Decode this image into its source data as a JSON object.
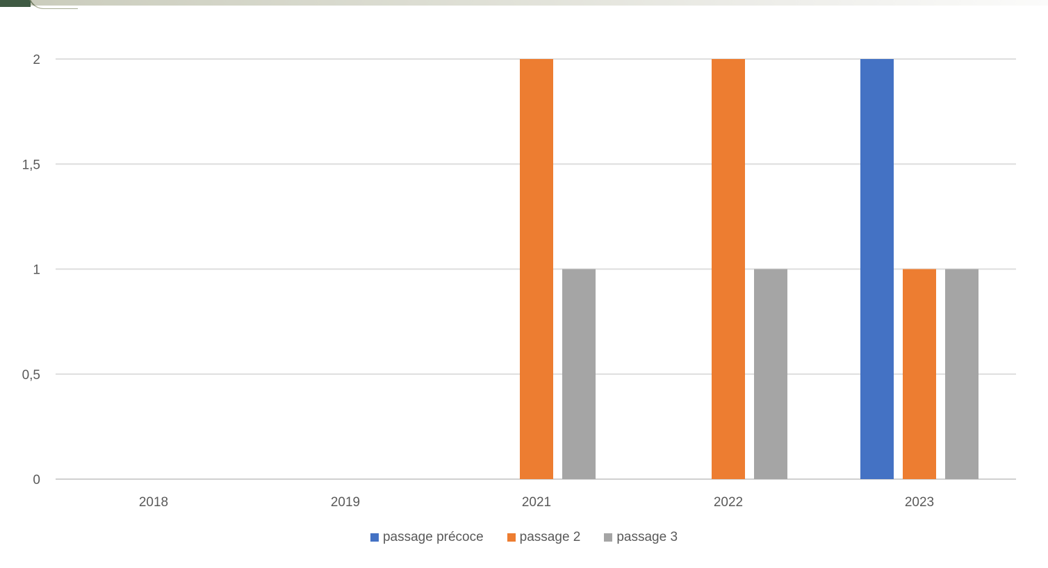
{
  "chart_data": {
    "type": "bar",
    "categories": [
      "2018",
      "2019",
      "2021",
      "2022",
      "2023"
    ],
    "series": [
      {
        "name": "passage précoce",
        "color": "#4472c4",
        "values": [
          0,
          0,
          0,
          0,
          2
        ]
      },
      {
        "name": "passage 2",
        "color": "#ed7d31",
        "values": [
          0,
          0,
          2,
          2,
          1
        ]
      },
      {
        "name": "passage 3",
        "color": "#a5a5a5",
        "values": [
          0,
          0,
          1,
          1,
          1
        ]
      }
    ],
    "yticks": [
      "0",
      "0,5",
      "1",
      "1,5",
      "2"
    ],
    "ylim": [
      0,
      2
    ],
    "grid": true,
    "legend_position": "bottom"
  }
}
